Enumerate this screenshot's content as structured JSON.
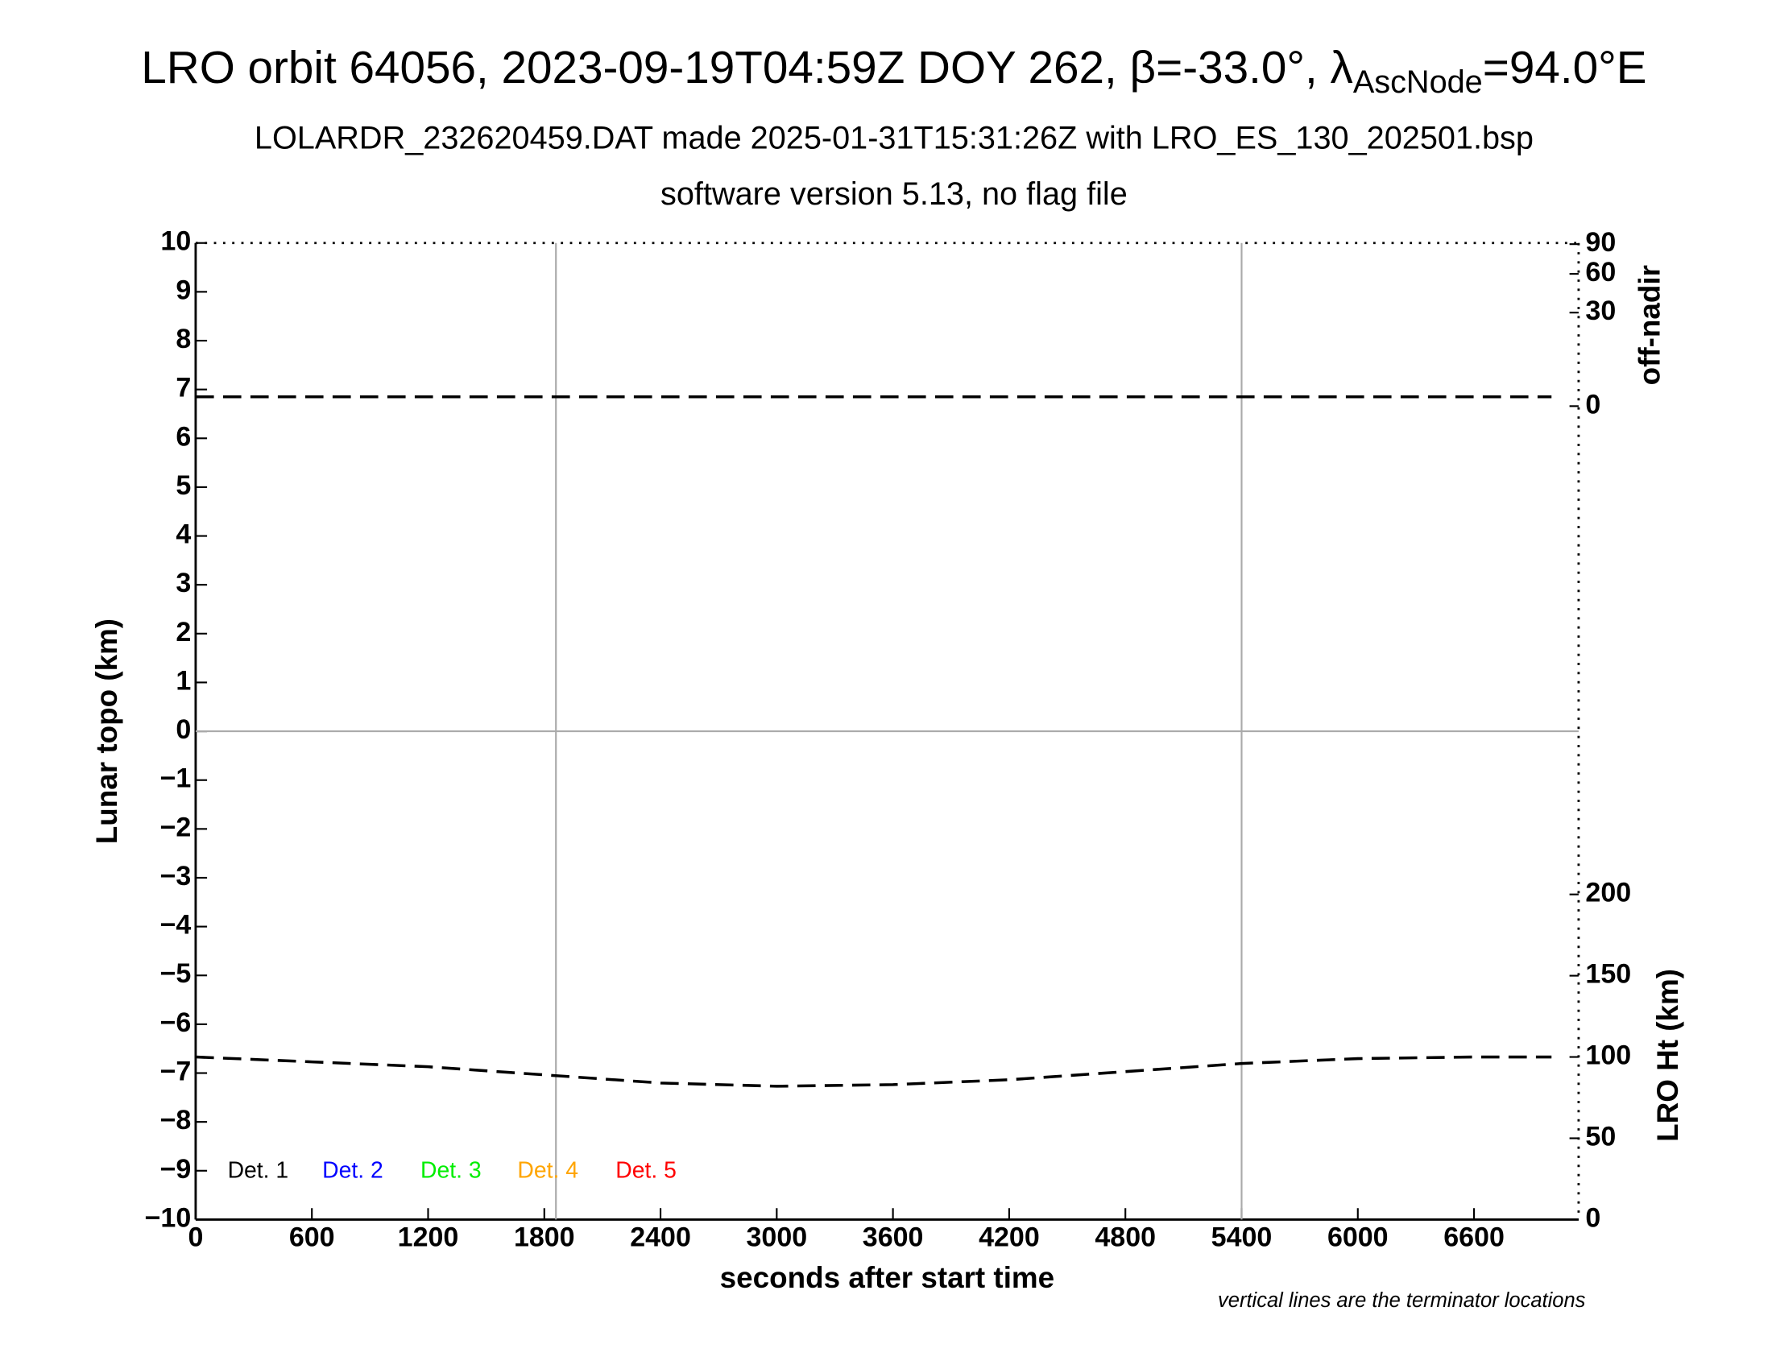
{
  "chart_data": {
    "type": "line",
    "title": "LRO orbit 64056, 2023-09-19T04:59Z DOY 262, β=-33.0°, λ",
    "title_subscript": "AscNode",
    "title_suffix": "=94.0°E",
    "subtitle": "LOLARDR_232620459.DAT made 2025-01-31T15:31:26Z with LRO_ES_130_202501.bsp",
    "subtitle2": "software version 5.13, no flag file",
    "xlabel": "seconds after start time",
    "ylabel": "Lunar topo (km)",
    "y2label": "off-nadir",
    "y3label": "LRO Ht (km)",
    "note": "vertical lines are the terminator locations",
    "xlim": [
      0,
      7140
    ],
    "xticks": [
      0,
      600,
      1200,
      1800,
      2400,
      3000,
      3600,
      4200,
      4800,
      5400,
      6000,
      6600
    ],
    "ylim": [
      -10,
      10
    ],
    "yticks": [
      {
        "value": -10,
        "label": "−10"
      },
      {
        "value": -9,
        "label": "−9"
      },
      {
        "value": -8,
        "label": "−8"
      },
      {
        "value": -7,
        "label": "−7"
      },
      {
        "value": -6,
        "label": "−6"
      },
      {
        "value": -5,
        "label": "−5"
      },
      {
        "value": -4,
        "label": "−4"
      },
      {
        "value": -3,
        "label": "−3"
      },
      {
        "value": -2,
        "label": "−2"
      },
      {
        "value": -1,
        "label": "−1"
      },
      0,
      1,
      2,
      3,
      4,
      5,
      6,
      7,
      8,
      9,
      10
    ],
    "y2lim": [
      0,
      90
    ],
    "y2ticks": [
      0,
      30,
      60,
      90
    ],
    "y2scale": "sqrt",
    "y3lim": [
      0,
      200
    ],
    "y3ticks": [
      0,
      50,
      100,
      150,
      200
    ],
    "terminators": [
      1860,
      5400
    ],
    "x": [
      0,
      600,
      1200,
      1800,
      2400,
      3000,
      3600,
      4200,
      4800,
      5400,
      6000,
      6600,
      7000
    ],
    "series": [
      {
        "name": "off-nadir",
        "axis": "y2",
        "color": "#000000",
        "values": [
          0.3,
          0.3,
          0.3,
          0.3,
          0.3,
          0.3,
          0.3,
          0.3,
          0.3,
          0.3,
          0.3,
          0.3,
          0.3
        ]
      },
      {
        "name": "LRO Ht (km)",
        "axis": "y3",
        "color": "#000000",
        "values": [
          100,
          97,
          94,
          89,
          84,
          82,
          83,
          86,
          91,
          96,
          99,
          100,
          100
        ]
      }
    ],
    "legend": [
      {
        "name": "Det. 1",
        "color": "#000000"
      },
      {
        "name": "Det. 2",
        "color": "#0000ff"
      },
      {
        "name": "Det. 3",
        "color": "#00ee00"
      },
      {
        "name": "Det. 4",
        "color": "#ffa500"
      },
      {
        "name": "Det. 5",
        "color": "#ff0000"
      }
    ]
  }
}
